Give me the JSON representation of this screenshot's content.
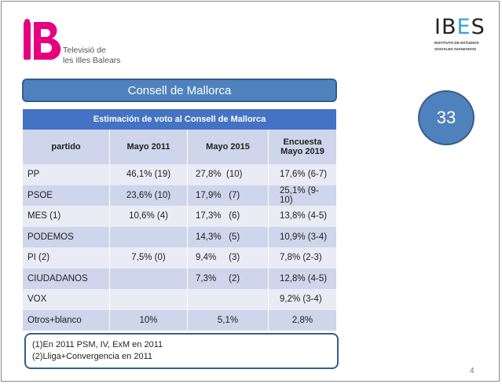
{
  "brand_left": {
    "line1": "Televisió de",
    "line2": "les Illes Balears"
  },
  "brand_right": {
    "word_a": "IB",
    "word_b": "E",
    "word_c": "S",
    "sub1": "INSTITUTO DE ESTUDIOS",
    "sub2": "SOCIALES AVANZADOS"
  },
  "slide_title": "Consell de Mallorca",
  "badge_number": "33",
  "table": {
    "caption": "Estimación de voto al Consell de  Mallorca",
    "headers": [
      "partido",
      "Mayo 2011",
      "Mayo 2015",
      "Encuesta",
      "Mayo 2019"
    ],
    "rows": [
      [
        "PP",
        "46,1% (19)",
        "27,8%  (10)",
        "17,6% (6-7)"
      ],
      [
        "PSOE",
        "23,6% (10)",
        "17,9%   (7)",
        "25,1% (9-10)"
      ],
      [
        "MES (1)",
        "10,6% (4)",
        "17,3%   (6)",
        "13,8% (4-5)"
      ],
      [
        "PODEMOS",
        "",
        "14,3%   (5)",
        "10,9% (3-4)"
      ],
      [
        "PI (2)",
        "7,5% (0)",
        "9,4%     (3)",
        "7,8% (2-3)"
      ],
      [
        "CIUDADANOS",
        "",
        "7,3%     (2)",
        "12,8% (4-5)"
      ],
      [
        "VOX",
        "",
        "",
        "9,2% (3-4)"
      ],
      [
        "Otros+blanco",
        "10%",
        "5,1%",
        "2,8%"
      ]
    ]
  },
  "notes": [
    "(1)En 2011 PSM, IV, ExM en 2011",
    "(2)Lliga+Convergencia en 2011"
  ],
  "page_number": "4",
  "colors": {
    "accent_blue": "#4f81bd",
    "header_blue": "#4472c4",
    "logo_magenta": "#e6007e"
  }
}
